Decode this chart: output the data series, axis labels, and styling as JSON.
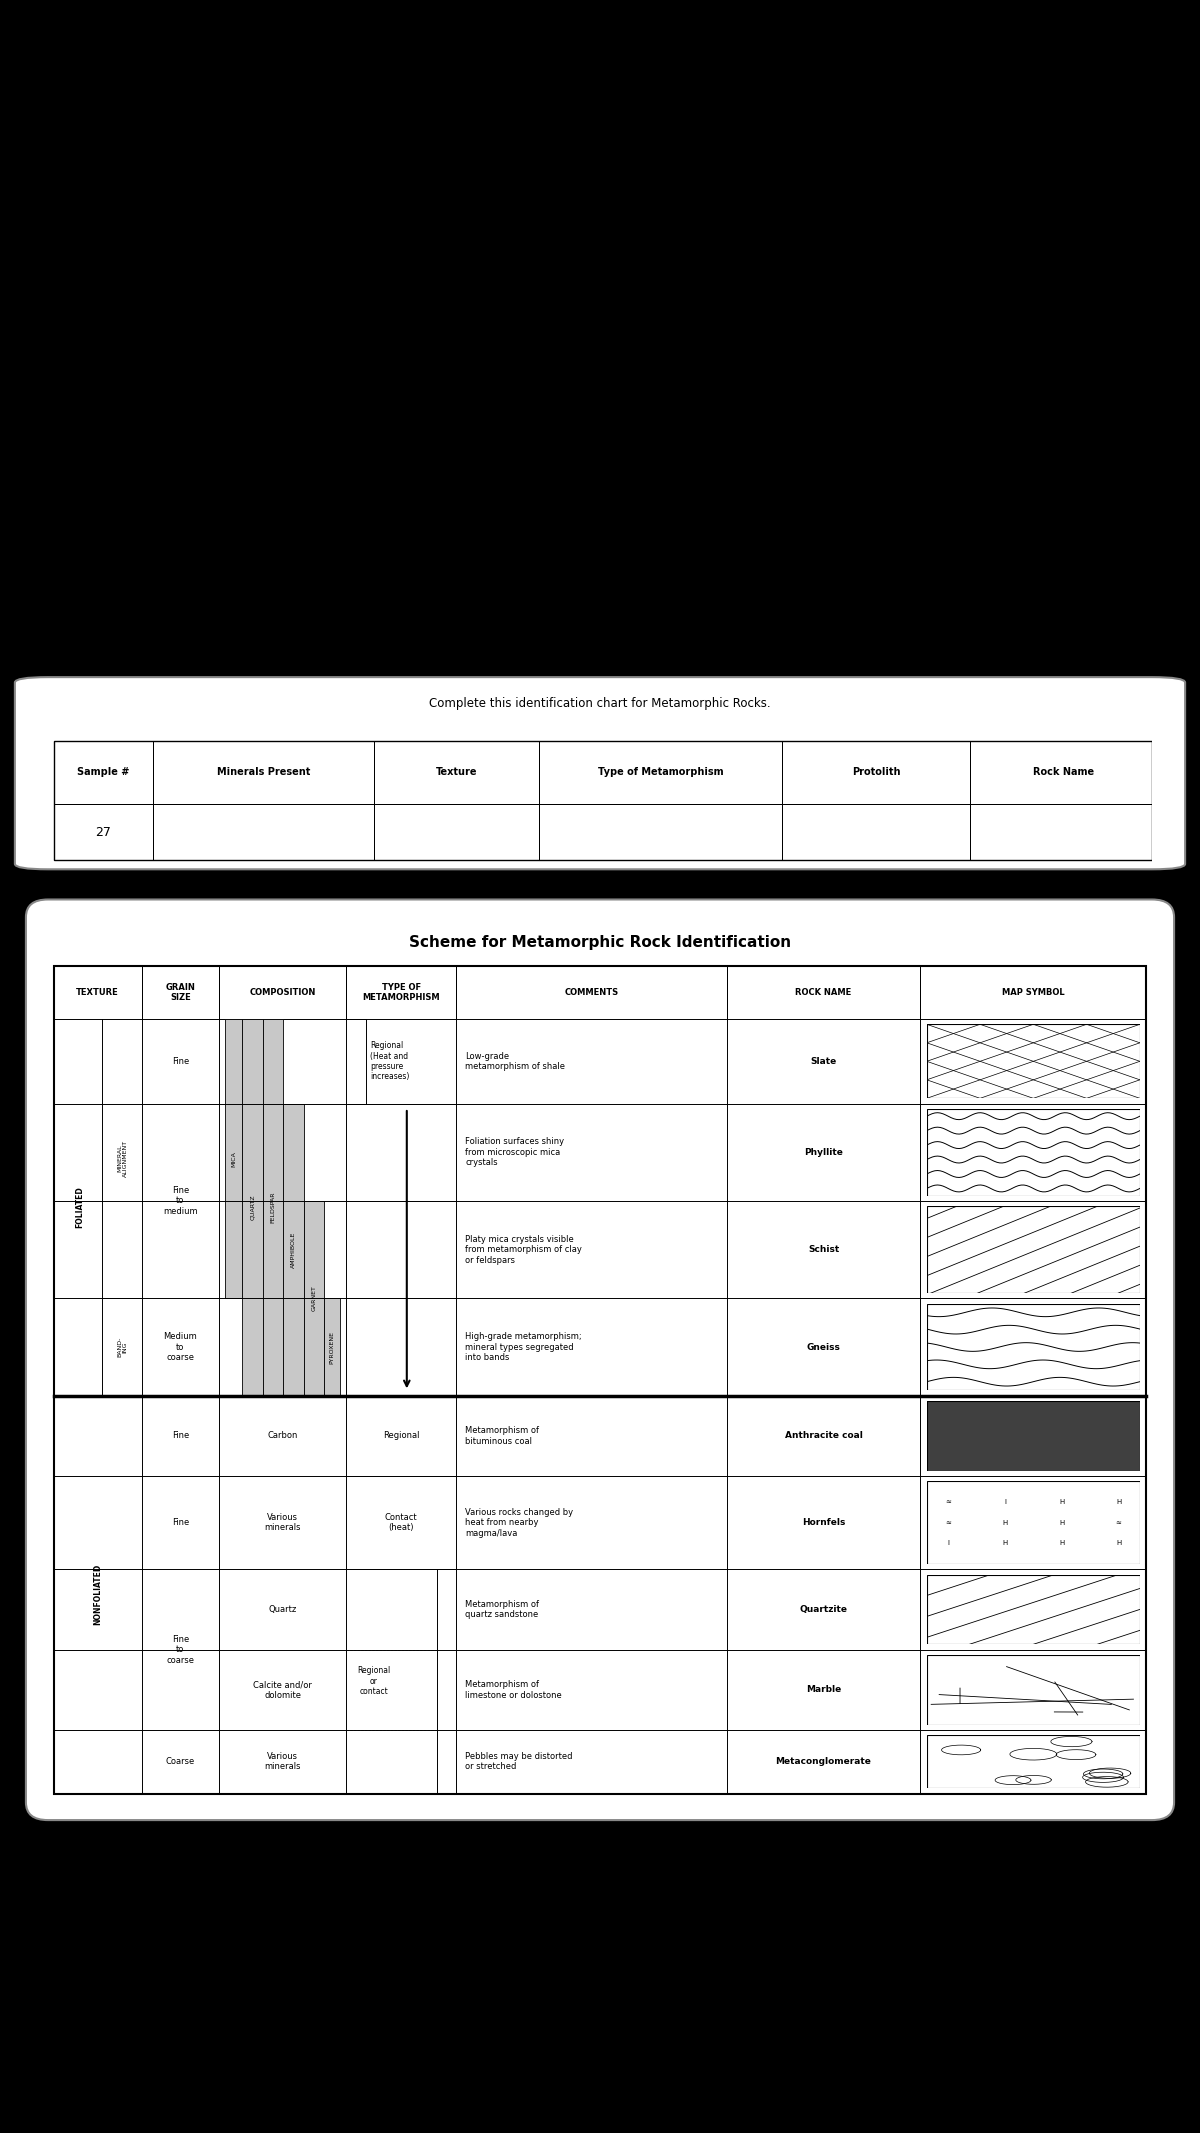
{
  "background_color": "#000000",
  "panel_bg": "#ffffff",
  "title_top": "Complete this identification chart for Metamorphic Rocks.",
  "top_table_headers": [
    "Sample #",
    "Minerals Present",
    "Texture",
    "Type of Metamorphism",
    "Protolith",
    "Rock Name"
  ],
  "top_table_row": [
    "27",
    "",
    "",
    "",
    "",
    ""
  ],
  "main_title": "Scheme for Metamorphic Rock Identification",
  "main_headers": [
    "TEXTURE",
    "GRAIN\nSIZE",
    "COMPOSITION",
    "TYPE OF\nMETAMORPHISM",
    "COMMENTS",
    "ROCK NAME",
    "MAP SYMBOL"
  ],
  "minerals_rotated": [
    "MICA",
    "QUARTZ",
    "FELDSPAR",
    "AMPHIBOLE",
    "GARNET",
    "PYROXENE"
  ],
  "rock_names": [
    "Slate",
    "Phyllite",
    "Schist",
    "Gneiss",
    "Anthracite coal",
    "Hornfels",
    "Quartzite",
    "Marble",
    "Metaconglomerate"
  ],
  "comments_list": [
    "Low-grade\nmetamorphism of shale",
    "Foliation surfaces shiny\nfrom microscopic mica\ncrystals",
    "Platy mica crystals visible\nfrom metamorphism of clay\nor feldspars",
    "High-grade metamorphism;\nmineral types segregated\ninto bands",
    "Metamorphism of\nbituminous coal",
    "Various rocks changed by\nheat from nearby\nmagma/lava",
    "Metamorphism of\nquartz sandstone",
    "Metamorphism of\nlimestone or dolostone",
    "Pebbles may be distorted\nor stretched"
  ],
  "nonfoliated_comps": [
    "Carbon",
    "Various\nminerals",
    "Quartz",
    "Calcite and/or\ndolomite",
    "Various\nminerals"
  ],
  "meta_nonfoliated": [
    "Regional",
    "Contact\n(heat)",
    "Regional\nor\ncontact"
  ],
  "symbol_types": [
    "slate",
    "phyllite",
    "schist",
    "gneiss",
    "anthracite",
    "hornfels",
    "quartzite",
    "marble",
    "metaconglomerate"
  ]
}
